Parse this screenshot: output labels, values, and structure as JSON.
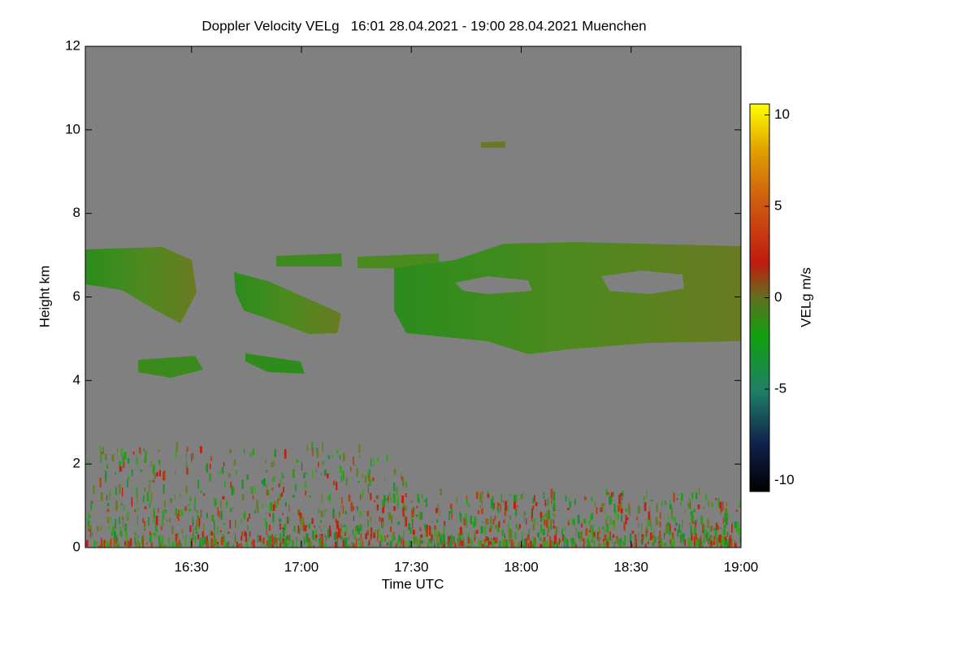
{
  "chart_data": {
    "type": "heatmap",
    "title": "Doppler Velocity VELg   16:01 28.04.2021 - 19:00 28.04.2021 Muenchen",
    "x_label": "Time UTC",
    "y_label": "Height km",
    "xlim": [
      16.0167,
      19.0
    ],
    "xticks": [
      {
        "value": 16.5,
        "label": "16:30"
      },
      {
        "value": 17.0,
        "label": "17:00"
      },
      {
        "value": 17.5,
        "label": "17:30"
      },
      {
        "value": 18.0,
        "label": "18:00"
      },
      {
        "value": 18.5,
        "label": "18:30"
      },
      {
        "value": 19.0,
        "label": "19:00"
      }
    ],
    "ylim": [
      0,
      12
    ],
    "yticks": [
      0,
      2,
      4,
      6,
      8,
      10,
      12
    ],
    "colorbar": {
      "label": "VELg m/s",
      "clim": [
        -10.6,
        10.6
      ],
      "ticks": [
        -10,
        -5,
        0,
        5,
        10
      ]
    },
    "background_color": "#808080"
  }
}
